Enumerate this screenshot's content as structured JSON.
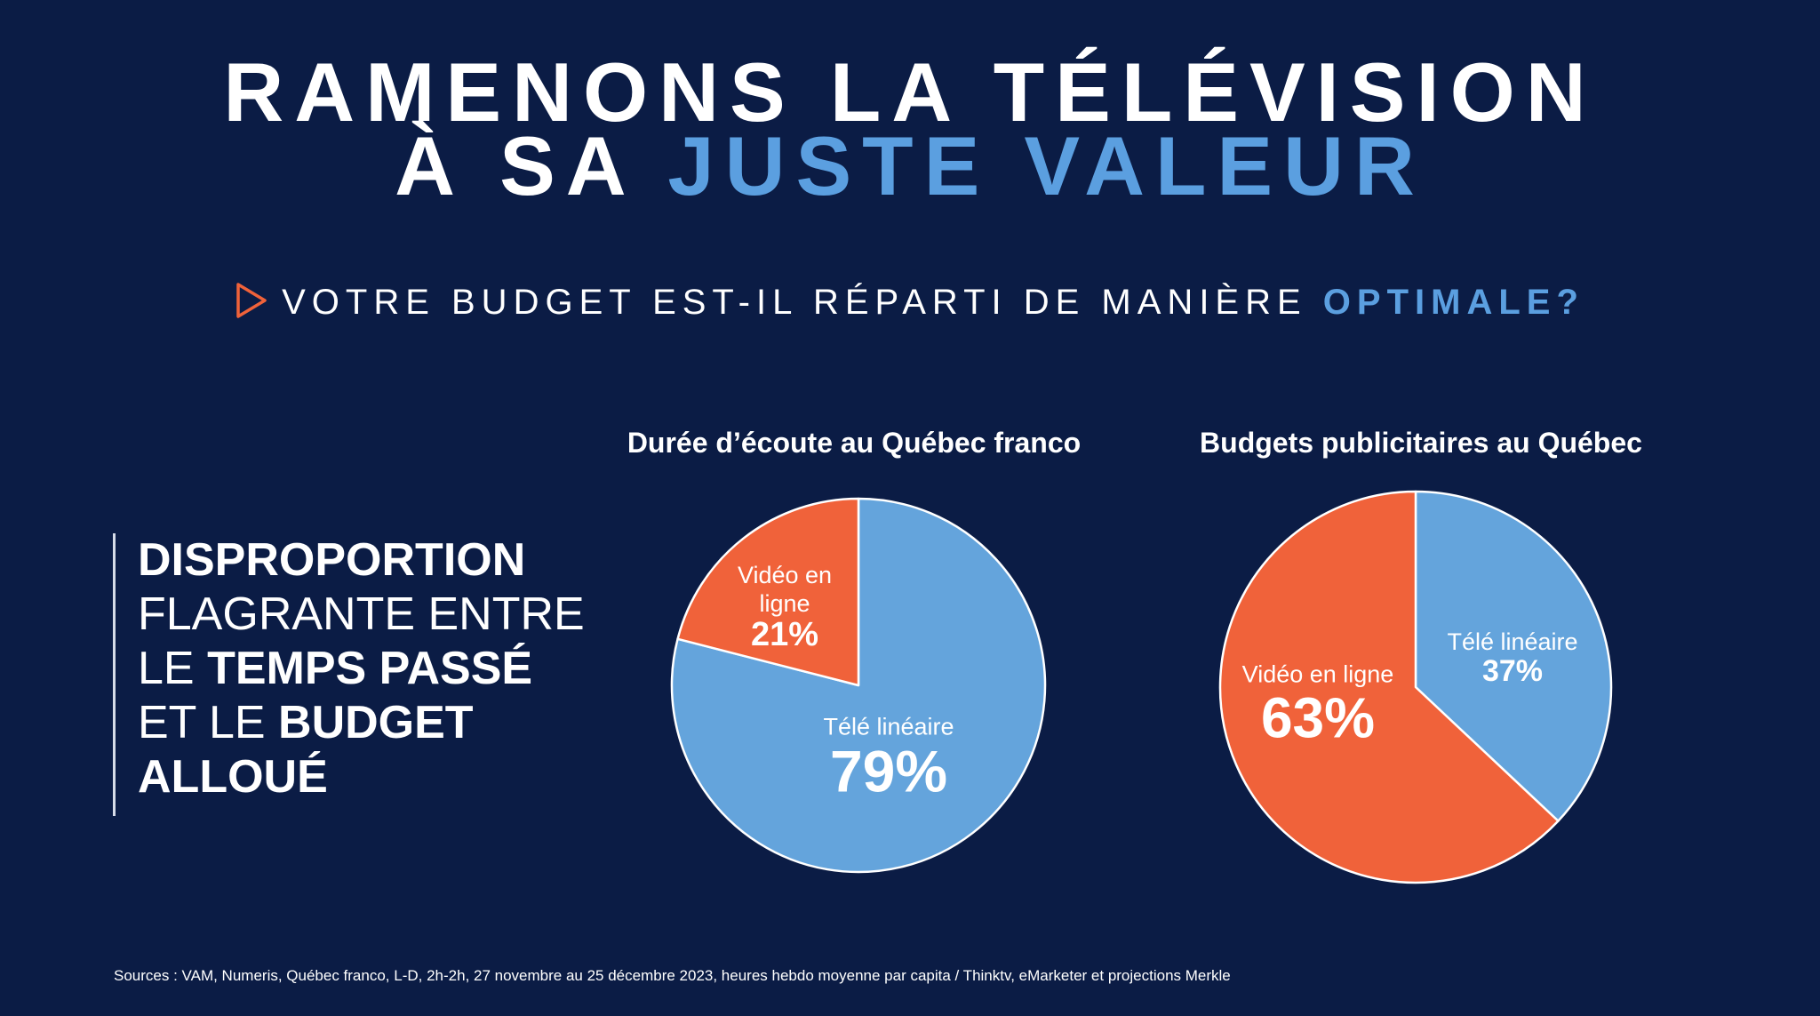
{
  "header": {
    "title_line1": "RAMENONS LA TÉLÉVISION",
    "title_line2_prefix": "À SA ",
    "title_line2_accent": "JUSTE VALEUR",
    "subtitle_prefix": "VOTRE BUDGET EST-IL RÉPARTI DE MANIÈRE ",
    "subtitle_accent": "OPTIMALE?"
  },
  "sidebar": {
    "line1_bold": "DISPROPORTION",
    "line2": "FLAGRANTE ENTRE",
    "line3_prefix": "LE ",
    "line3_bold": "TEMPS PASSÉ",
    "line4_prefix": "ET LE ",
    "line4_bold": "BUDGET",
    "line5_bold": "ALLOUÉ"
  },
  "source": "Sources : VAM, Numeris, Québec franco, L-D, 2h-2h, 27 novembre au 25 décembre 2023, heures hebdo moyenne par capita / Thinktv,  eMarketer et projections Merkle",
  "colors": {
    "background": "#0b1c45",
    "accent_blue": "#5b9fe0",
    "tele_lineaire": "#64a4dc",
    "video_en_ligne": "#f0623a",
    "triangle": "#f0623a"
  },
  "chart_data": [
    {
      "type": "pie",
      "title": "Durée d’écoute au Québec franco",
      "slices": [
        {
          "label": "Télé linéaire",
          "value": 79,
          "display": "79%"
        },
        {
          "label": "Vidéo en ligne",
          "value": 21,
          "display": "21%"
        }
      ]
    },
    {
      "type": "pie",
      "title": "Budgets publicitaires au Québec",
      "slices": [
        {
          "label": "Télé linéaire",
          "value": 37,
          "display": "37%"
        },
        {
          "label": "Vidéo en ligne",
          "value": 63,
          "display": "63%"
        }
      ]
    }
  ]
}
